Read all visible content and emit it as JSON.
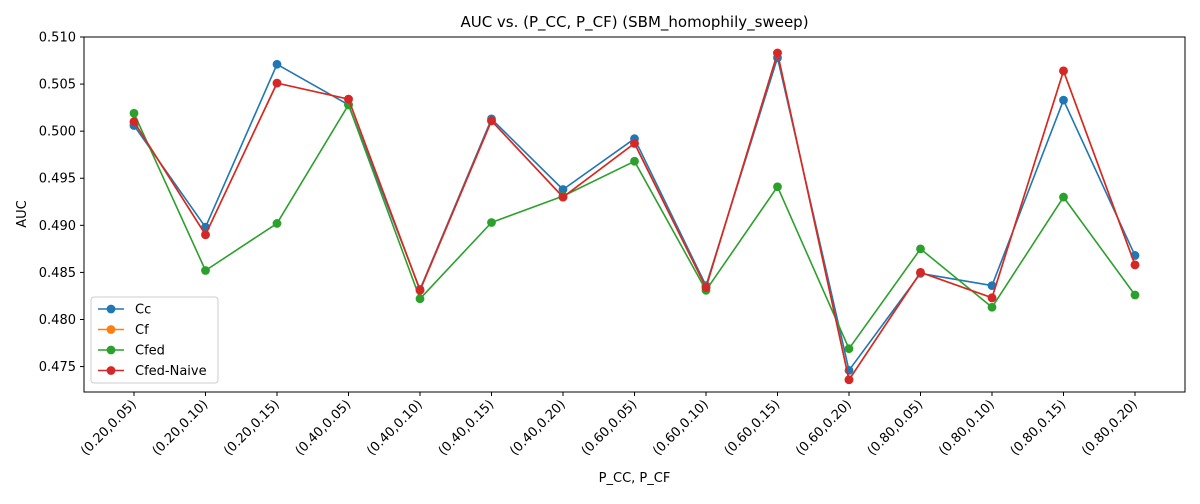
{
  "chart_data": {
    "type": "line",
    "title": "AUC vs. (P_CC, P_CF) (SBM_homophily_sweep)",
    "xlabel": "P_CC, P_CF",
    "ylabel": "AUC",
    "categories": [
      "(0.20,0.05)",
      "(0.20,0.10)",
      "(0.20,0.15)",
      "(0.40,0.05)",
      "(0.40,0.10)",
      "(0.40,0.15)",
      "(0.40,0.20)",
      "(0.60,0.05)",
      "(0.60,0.10)",
      "(0.60,0.15)",
      "(0.60,0.20)",
      "(0.80,0.05)",
      "(0.80,0.10)",
      "(0.80,0.15)",
      "(0.80,0.20)"
    ],
    "ylim": [
      0.4723,
      0.51
    ],
    "yticks": [
      0.475,
      0.48,
      0.485,
      0.49,
      0.495,
      0.5,
      0.505,
      0.51
    ],
    "ytick_labels": [
      "0.475",
      "0.480",
      "0.485",
      "0.490",
      "0.495",
      "0.500",
      "0.505",
      "0.510"
    ],
    "grid": false,
    "legend_position": "lower-left",
    "series": [
      {
        "name": "Cc",
        "color": "#1f77b4",
        "values": [
          0.5006,
          0.4898,
          0.5071,
          0.5028,
          0.4832,
          0.5013,
          0.4938,
          0.4992,
          0.4836,
          0.5078,
          0.4746,
          0.4849,
          0.4836,
          0.5033,
          0.4868
        ]
      },
      {
        "name": "Cf",
        "color": "#ff7f0e",
        "values": [
          0.501,
          0.489,
          0.5051,
          0.5034,
          0.4831,
          0.5011,
          0.493,
          0.4987,
          0.4834,
          0.5083,
          0.4736,
          0.485,
          0.4823,
          0.5064,
          0.4858
        ]
      },
      {
        "name": "Cfed",
        "color": "#2ca02c",
        "values": [
          0.5019,
          0.4852,
          0.4902,
          0.5028,
          0.4822,
          0.4903,
          0.4931,
          0.4968,
          0.4831,
          0.4941,
          0.4769,
          0.4875,
          0.4813,
          0.493,
          0.4826
        ]
      },
      {
        "name": "Cfed-Naive",
        "color": "#d62728",
        "values": [
          0.501,
          0.489,
          0.5051,
          0.5034,
          0.4831,
          0.5011,
          0.493,
          0.4987,
          0.4834,
          0.5083,
          0.4736,
          0.485,
          0.4823,
          0.5064,
          0.4858
        ]
      }
    ]
  }
}
